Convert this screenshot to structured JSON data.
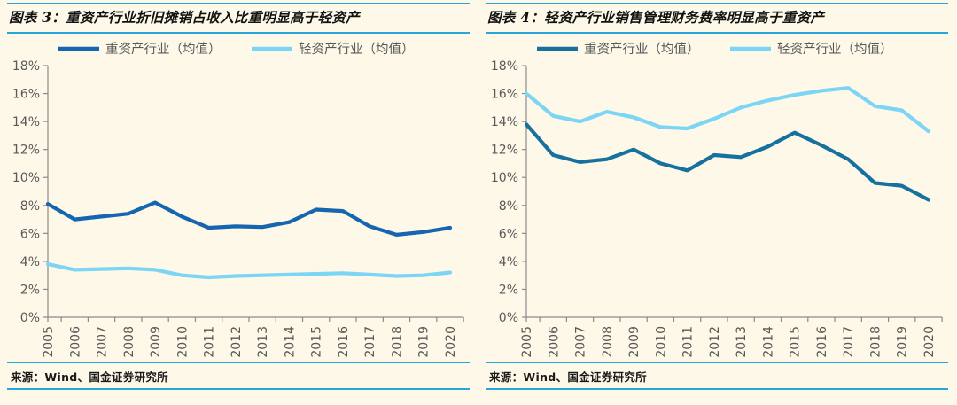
{
  "page": {
    "background": "#fdf8e7",
    "rule_color": "#29a5dc",
    "axis_color": "#8a8a8a",
    "label_color": "#595959"
  },
  "charts": [
    {
      "title": "图表 3：重资产行业折旧摊销占收入比重明显高于轻资产",
      "source": "来源：Wind、国金证券研究所",
      "chart_data": {
        "type": "line",
        "categories": [
          "2005",
          "2006",
          "2007",
          "2008",
          "2009",
          "2010",
          "2011",
          "2012",
          "2013",
          "2014",
          "2015",
          "2016",
          "2017",
          "2018",
          "2019",
          "2020"
        ],
        "series": [
          {
            "name": "重资产行业（均值）",
            "color": "#1565b0",
            "values": [
              8.1,
              7.0,
              7.2,
              7.4,
              8.2,
              7.2,
              6.4,
              6.5,
              6.45,
              6.8,
              7.7,
              7.6,
              6.5,
              5.9,
              6.1,
              6.4
            ]
          },
          {
            "name": "轻资产行业（均值）",
            "color": "#7dd5f6",
            "values": [
              3.8,
              3.4,
              3.45,
              3.5,
              3.4,
              3.0,
              2.85,
              2.95,
              3.0,
              3.05,
              3.1,
              3.15,
              3.05,
              2.95,
              3.0,
              3.2
            ]
          }
        ],
        "ylim": [
          0,
          18
        ],
        "ytick_step": 2,
        "ytick_labels": [
          "0%",
          "2%",
          "4%",
          "6%",
          "8%",
          "10%",
          "12%",
          "14%",
          "16%",
          "18%"
        ],
        "xlabel": "",
        "ylabel": "",
        "grid": false,
        "legend_position": "top"
      }
    },
    {
      "title": "图表 4：轻资产行业销售管理财务费率明显高于重资产",
      "source": "来源：Wind、国金证券研究所",
      "chart_data": {
        "type": "line",
        "categories": [
          "2005",
          "2006",
          "2007",
          "2008",
          "2009",
          "2010",
          "2011",
          "2012",
          "2013",
          "2014",
          "2015",
          "2016",
          "2017",
          "2018",
          "2019",
          "2020"
        ],
        "series": [
          {
            "name": "重资产行业（均值）",
            "color": "#17719f",
            "values": [
              13.8,
              11.6,
              11.1,
              11.3,
              12.0,
              11.0,
              10.5,
              11.6,
              11.45,
              12.2,
              13.2,
              12.3,
              11.3,
              9.6,
              9.4,
              8.4
            ]
          },
          {
            "name": "轻资产行业（均值）",
            "color": "#7dd5f6",
            "values": [
              16.0,
              14.4,
              14.0,
              14.7,
              14.3,
              13.6,
              13.5,
              14.2,
              15.0,
              15.5,
              15.9,
              16.2,
              16.4,
              15.1,
              14.8,
              13.3
            ]
          }
        ],
        "ylim": [
          0,
          18
        ],
        "ytick_step": 2,
        "ytick_labels": [
          "0%",
          "2%",
          "4%",
          "6%",
          "8%",
          "10%",
          "12%",
          "14%",
          "16%",
          "18%"
        ],
        "xlabel": "",
        "ylabel": "",
        "grid": false,
        "legend_position": "top"
      }
    }
  ]
}
